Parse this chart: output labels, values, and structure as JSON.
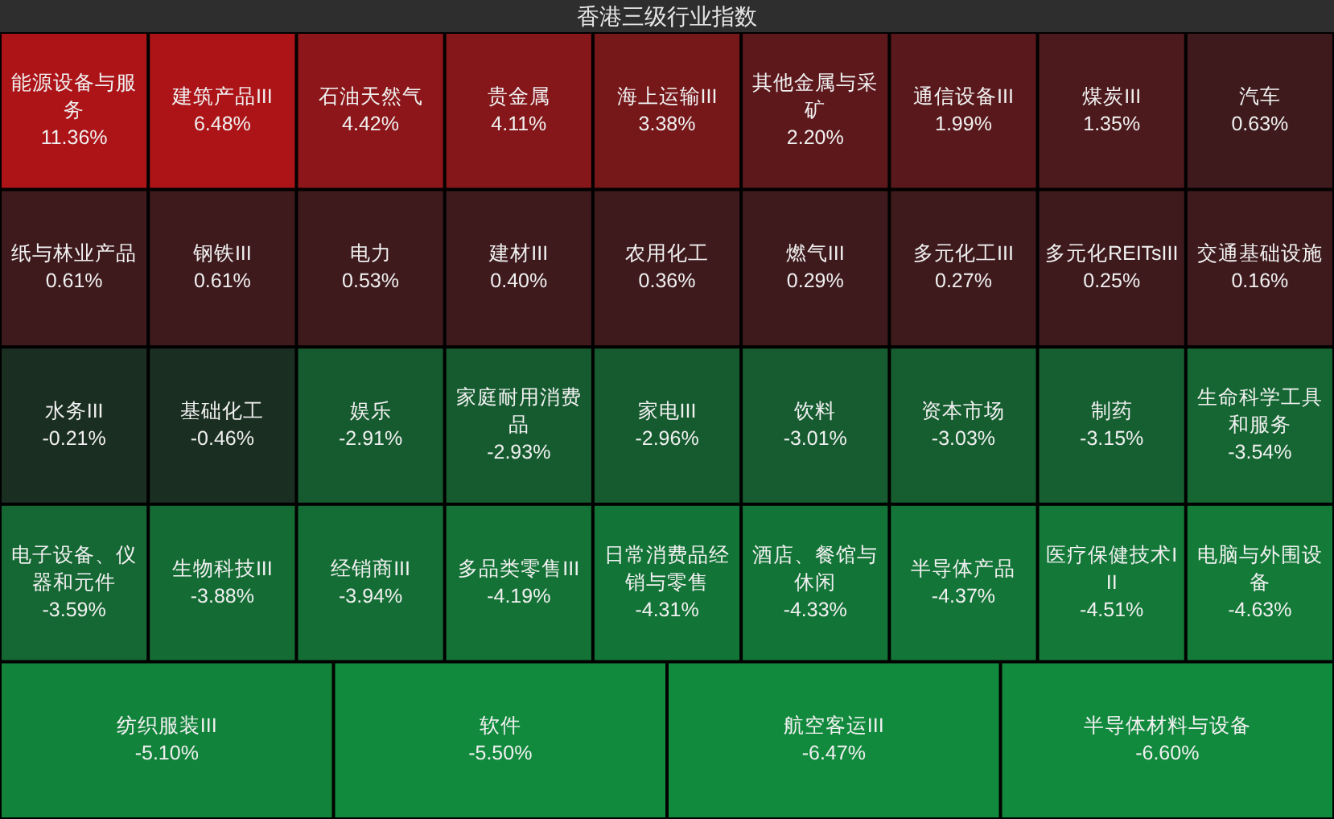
{
  "chart_data": {
    "type": "other",
    "title": "香港三级行业指数",
    "categories": [
      "能源设备与服务",
      "建筑产品III",
      "石油天然气",
      "贵金属",
      "海上运输III",
      "其他金属与采矿",
      "通信设备III",
      "煤炭III",
      "汽车",
      "纸与林业产品",
      "钢铁III",
      "电力",
      "建材III",
      "农用化工",
      "燃气III",
      "多元化工III",
      "多元化REITsIII",
      "交通基础设施",
      "水务III",
      "基础化工",
      "娱乐",
      "家庭耐用消费品",
      "家电III",
      "饮料",
      "资本市场",
      "制药",
      "生命科学工具和服务",
      "电子设备、仪器和元件",
      "生物科技III",
      "经销商III",
      "多品类零售III",
      "日常消费品经销与零售",
      "酒店、餐馆与休闲",
      "半导体产品",
      "医疗保健技术III",
      "电脑与外围设备",
      "纺织服装III",
      "软件",
      "航空客运III",
      "半导体材料与设备"
    ],
    "values": [
      11.36,
      6.48,
      4.42,
      4.11,
      3.38,
      2.2,
      1.99,
      1.35,
      0.63,
      0.61,
      0.61,
      0.53,
      0.4,
      0.36,
      0.29,
      0.27,
      0.25,
      0.16,
      -0.21,
      -0.46,
      -2.91,
      -2.93,
      -2.96,
      -3.01,
      -3.03,
      -3.15,
      -3.54,
      -3.59,
      -3.88,
      -3.94,
      -4.19,
      -4.31,
      -4.33,
      -4.37,
      -4.51,
      -4.63,
      -5.1,
      -5.5,
      -6.47,
      -6.6
    ],
    "value_labels": [
      "11.36%",
      "6.48%",
      "4.42%",
      "4.11%",
      "3.38%",
      "2.20%",
      "1.99%",
      "1.35%",
      "0.63%",
      "0.61%",
      "0.61%",
      "0.53%",
      "0.40%",
      "0.36%",
      "0.29%",
      "0.27%",
      "0.25%",
      "0.16%",
      "-0.21%",
      "-0.46%",
      "-2.91%",
      "-2.93%",
      "-2.96%",
      "-3.01%",
      "-3.03%",
      "-3.15%",
      "-3.54%",
      "-3.59%",
      "-3.88%",
      "-3.94%",
      "-4.19%",
      "-4.31%",
      "-4.33%",
      "-4.37%",
      "-4.51%",
      "-4.63%",
      "-5.10%",
      "-5.50%",
      "-6.47%",
      "-6.60%"
    ]
  }
}
